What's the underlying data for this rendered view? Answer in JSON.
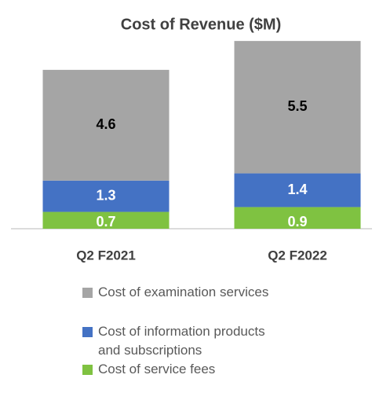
{
  "chart_data": {
    "type": "stacked_bar",
    "title": "Cost of Revenue ($M)",
    "categories": [
      "Q2 F2021",
      "Q2 F2022"
    ],
    "series": [
      {
        "name": "Cost of service fees",
        "color": "#7fc241",
        "values": [
          0.7,
          0.9
        ]
      },
      {
        "name": "Cost of information products and subscriptions",
        "color": "#4472c4",
        "values": [
          1.3,
          1.4
        ]
      },
      {
        "name": "Cost of examination services",
        "color": "#a5a5a5",
        "values": [
          4.6,
          5.5
        ]
      }
    ],
    "ylim": [
      0,
      8
    ]
  }
}
